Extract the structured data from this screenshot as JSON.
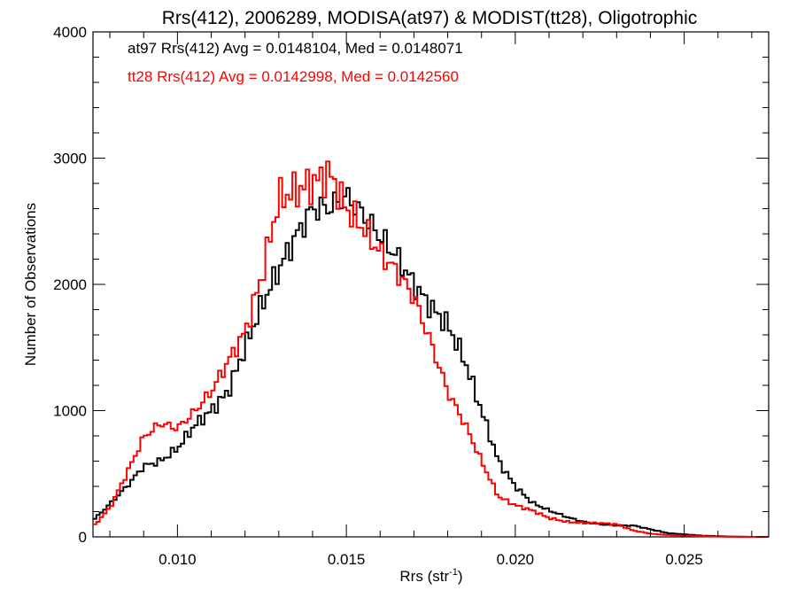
{
  "chart_data": {
    "type": "line",
    "style": "step-histogram",
    "title": "Rrs(412), 2006289, MODISA(at97) & MODIST(tt28), Oligotrophic",
    "xlabel_main": "Rrs (str",
    "xlabel_sup": "-1",
    "xlabel_close": ")",
    "ylabel": "Number of Observations",
    "xlim": [
      0.0075,
      0.0275
    ],
    "ylim": [
      0,
      4000
    ],
    "xticks": [
      0.01,
      0.015,
      0.02,
      0.025
    ],
    "xtick_labels": [
      "0.010",
      "0.015",
      "0.020",
      "0.025"
    ],
    "yticks": [
      0,
      1000,
      2000,
      3000,
      4000
    ],
    "ytick_labels": [
      "0",
      "1000",
      "2000",
      "3000",
      "4000"
    ],
    "grid": false,
    "legend_position": "top-left",
    "series": [
      {
        "name": "at97 Rrs(412) Avg = 0.0148104, Med = 0.0148071",
        "color": "#000000",
        "points": [
          [
            0.0075,
            130
          ],
          [
            0.008,
            260
          ],
          [
            0.0085,
            400
          ],
          [
            0.009,
            560
          ],
          [
            0.0095,
            600
          ],
          [
            0.01,
            700
          ],
          [
            0.0105,
            880
          ],
          [
            0.011,
            1000
          ],
          [
            0.0115,
            1150
          ],
          [
            0.012,
            1500
          ],
          [
            0.0125,
            1840
          ],
          [
            0.013,
            2120
          ],
          [
            0.0135,
            2380
          ],
          [
            0.014,
            2600
          ],
          [
            0.0145,
            2610
          ],
          [
            0.015,
            2700
          ],
          [
            0.0155,
            2550
          ],
          [
            0.016,
            2380
          ],
          [
            0.0165,
            2220
          ],
          [
            0.017,
            2000
          ],
          [
            0.0175,
            1820
          ],
          [
            0.018,
            1680
          ],
          [
            0.0185,
            1400
          ],
          [
            0.019,
            1000
          ],
          [
            0.0195,
            600
          ],
          [
            0.02,
            400
          ],
          [
            0.0205,
            270
          ],
          [
            0.021,
            210
          ],
          [
            0.0215,
            160
          ],
          [
            0.022,
            120
          ],
          [
            0.0225,
            100
          ],
          [
            0.023,
            90
          ],
          [
            0.0235,
            90
          ],
          [
            0.024,
            60
          ],
          [
            0.0245,
            30
          ],
          [
            0.025,
            20
          ],
          [
            0.0255,
            10
          ],
          [
            0.026,
            5
          ],
          [
            0.0265,
            2
          ],
          [
            0.027,
            0
          ],
          [
            0.0275,
            0
          ]
        ]
      },
      {
        "name": "tt28 Rrs(412) Avg = 0.0142998, Med = 0.0142560",
        "color": "#ff0000",
        "points": [
          [
            0.0075,
            80
          ],
          [
            0.008,
            230
          ],
          [
            0.0085,
            500
          ],
          [
            0.009,
            790
          ],
          [
            0.0095,
            900
          ],
          [
            0.01,
            860
          ],
          [
            0.0105,
            990
          ],
          [
            0.011,
            1150
          ],
          [
            0.0115,
            1390
          ],
          [
            0.012,
            1620
          ],
          [
            0.0125,
            2070
          ],
          [
            0.013,
            2680
          ],
          [
            0.0135,
            2740
          ],
          [
            0.014,
            2800
          ],
          [
            0.0145,
            2880
          ],
          [
            0.015,
            2600
          ],
          [
            0.0155,
            2450
          ],
          [
            0.016,
            2250
          ],
          [
            0.0165,
            2100
          ],
          [
            0.017,
            1900
          ],
          [
            0.0175,
            1540
          ],
          [
            0.018,
            1150
          ],
          [
            0.0185,
            900
          ],
          [
            0.019,
            600
          ],
          [
            0.0195,
            320
          ],
          [
            0.02,
            250
          ],
          [
            0.0205,
            210
          ],
          [
            0.021,
            150
          ],
          [
            0.0215,
            120
          ],
          [
            0.022,
            110
          ],
          [
            0.0225,
            110
          ],
          [
            0.023,
            100
          ],
          [
            0.0235,
            50
          ],
          [
            0.024,
            25
          ],
          [
            0.0245,
            15
          ],
          [
            0.025,
            10
          ],
          [
            0.0255,
            5
          ],
          [
            0.026,
            3
          ],
          [
            0.0265,
            1
          ],
          [
            0.027,
            0
          ],
          [
            0.0275,
            0
          ]
        ]
      }
    ]
  }
}
